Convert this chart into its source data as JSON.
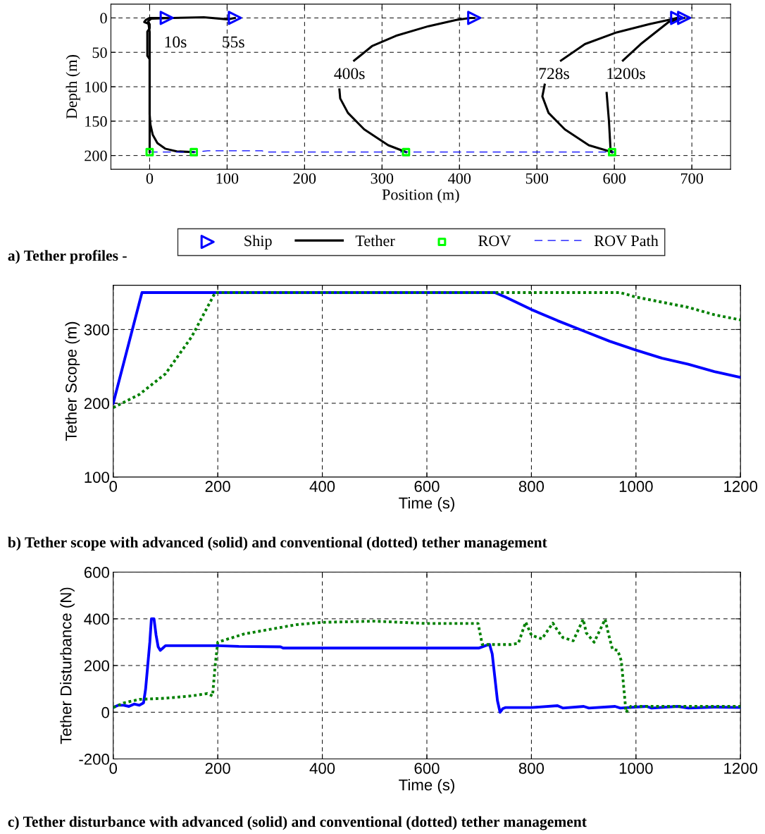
{
  "chart_data": [
    {
      "type": "line",
      "xlabel": "Position (m)",
      "ylabel": "Depth (m)",
      "xlim": [
        -50,
        750
      ],
      "ylim": [
        220,
        -20
      ],
      "xticks": [
        0,
        100,
        200,
        300,
        400,
        500,
        600,
        700
      ],
      "yticks": [
        0,
        50,
        100,
        150,
        200
      ],
      "grid": true,
      "legend": "bottom",
      "annotations": [
        "10s",
        "55s",
        "400s",
        "728s",
        "1200s",
        "a) Tether profiles -"
      ],
      "series": [
        {
          "name": "Ship",
          "type": "scatter",
          "marker": "triangle",
          "color": "#0000ff",
          "x": [
            22,
            110,
            419,
            681,
            690
          ],
          "values": [
            0,
            0,
            0,
            0,
            0
          ]
        },
        {
          "name": "Tether",
          "color": "#000000",
          "x": [
            0,
            0,
            0,
            -3,
            -3,
            0,
            0,
            -7,
            -5,
            0,
            22
          ],
          "values": [
            195,
            150,
            60,
            55,
            20,
            15,
            9,
            6,
            3,
            0,
            0
          ]
        },
        {
          "color": "#000000",
          "x": [
            57,
            35,
            20,
            10,
            4,
            1,
            0,
            0,
            -2,
            2,
            30,
            70,
            100,
            110
          ],
          "values": [
            195,
            194,
            190,
            182,
            170,
            155,
            140,
            20,
            5,
            1,
            0,
            -1,
            2,
            0
          ]
        },
        {
          "color": "#000000",
          "x": [
            331,
            308,
            277,
            256,
            246,
            245,
            250,
            264,
            287,
            318,
            360,
            396,
            414,
            419
          ],
          "values": [
            195,
            185,
            162,
            138,
            117,
            104,
            null,
            62,
            41,
            26,
            12,
            3,
            0,
            0
          ]
        },
        {
          "color": "#000000",
          "x": [
            597,
            567,
            536,
            515,
            507,
            510,
            520,
            531,
            562,
            603,
            645,
            670,
            681
          ],
          "values": [
            195,
            185,
            162,
            138,
            114,
            97,
            null,
            62,
            38,
            21,
            9,
            3,
            0
          ]
        },
        {
          "color": "#000000",
          "x": [
            597,
            595,
            593,
            590,
            600,
            611,
            634,
            670,
            690
          ],
          "values": [
            195,
            191,
            150,
            109,
            null,
            62,
            38,
            6,
            0
          ]
        },
        {
          "name": "ROV",
          "type": "scatter",
          "marker": "square",
          "color": "#00ff00",
          "x": [
            0,
            57,
            331,
            597
          ],
          "values": [
            195,
            195,
            195,
            195
          ]
        },
        {
          "name": "ROV Path",
          "line_style": "dashed",
          "color": "#0000ff",
          "x": [
            0,
            60,
            75,
            145,
            150,
            600
          ],
          "values": [
            195,
            195,
            193,
            193,
            195,
            195
          ]
        }
      ]
    },
    {
      "type": "line",
      "xlabel": "Time (s)",
      "ylabel": "Tether Scope (m)",
      "xlim": [
        0,
        1200
      ],
      "ylim": [
        100,
        360
      ],
      "xticks": [
        0,
        200,
        400,
        600,
        800,
        1000,
        1200
      ],
      "yticks": [
        100,
        200,
        300
      ],
      "grid": true,
      "annotations": [
        "b) Tether scope with advanced (solid) and conventional (dotted) tether management"
      ],
      "series": [
        {
          "color": "#0000ff",
          "x": [
            0,
            55,
            730,
            750,
            800,
            850,
            900,
            950,
            1000,
            1050,
            1100,
            1150,
            1200
          ],
          "values": [
            200,
            350,
            350,
            344,
            327,
            312,
            298,
            284,
            272,
            261,
            253,
            243,
            235
          ]
        },
        {
          "color": "#008000",
          "line_style": "dotted",
          "x": [
            0,
            50,
            100,
            150,
            195,
            970,
            1000,
            1050,
            1100,
            1150,
            1200
          ],
          "values": [
            194,
            212,
            240,
            290,
            350,
            350,
            344,
            337,
            330,
            320,
            313
          ]
        }
      ]
    },
    {
      "type": "line",
      "xlabel": "Time (s)",
      "ylabel": "Tether Disturbance (N)",
      "xlim": [
        0,
        1200
      ],
      "ylim": [
        -200,
        600
      ],
      "xticks": [
        0,
        200,
        400,
        600,
        800,
        1000,
        1200
      ],
      "yticks": [
        -200,
        0,
        200,
        400,
        600
      ],
      "grid": true,
      "annotations": [
        "c) Tether disturbance with advanced (solid) and conventional (dotted) tether management"
      ],
      "series": [
        {
          "color": "#0000ff",
          "x": [
            0,
            10,
            20,
            30,
            40,
            50,
            58,
            62,
            66,
            70,
            73,
            78,
            82,
            86,
            90,
            95,
            100,
            200,
            240,
            320,
            325,
            700,
            712,
            720,
            725,
            730,
            735,
            740,
            745,
            750,
            800,
            850,
            860,
            900,
            910,
            960,
            970,
            1020,
            1030,
            1080,
            1100,
            1150,
            1200
          ],
          "values": [
            20,
            30,
            30,
            25,
            35,
            30,
            40,
            100,
            200,
            300,
            400,
            400,
            330,
            280,
            265,
            275,
            285,
            285,
            282,
            280,
            275,
            275,
            285,
            290,
            250,
            150,
            50,
            0,
            15,
            20,
            20,
            28,
            18,
            25,
            18,
            25,
            18,
            25,
            18,
            25,
            18,
            22,
            20
          ]
        },
        {
          "color": "#008000",
          "line_style": "dotted",
          "x": [
            0,
            20,
            50,
            100,
            150,
            180,
            190,
            195,
            200,
            250,
            300,
            350,
            400,
            500,
            600,
            698,
            706,
            760,
            775,
            789,
            800,
            820,
            841,
            850,
            860,
            880,
            899,
            905,
            920,
            941,
            948,
            955,
            965,
            972,
            981,
            990,
            1200
          ],
          "values": [
            20,
            40,
            55,
            60,
            70,
            80,
            70,
            200,
            300,
            335,
            355,
            375,
            385,
            390,
            380,
            380,
            290,
            290,
            295,
            386,
            330,
            314,
            382,
            350,
            320,
            306,
            398,
            340,
            300,
            398,
            330,
            270,
            265,
            220,
            0,
            25,
            25
          ]
        }
      ]
    }
  ]
}
